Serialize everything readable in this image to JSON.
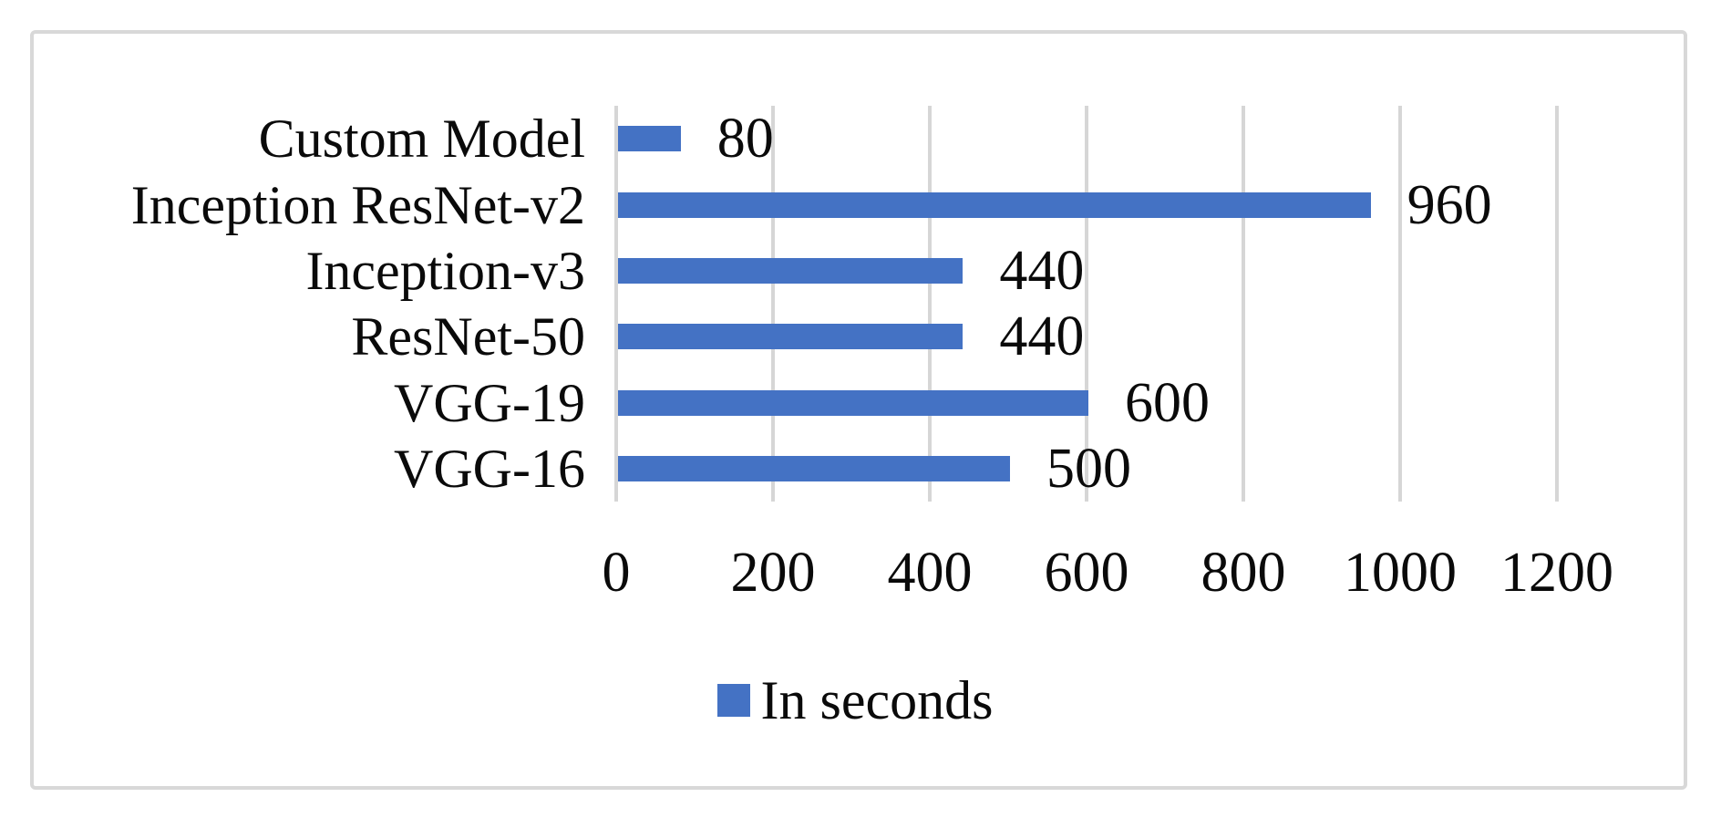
{
  "chart_data": {
    "type": "bar",
    "orientation": "horizontal",
    "title": "",
    "categories": [
      "Custom Model",
      "Inception ResNet-v2",
      "Inception-v3",
      "ResNet-50",
      "VGG-19",
      "VGG-16"
    ],
    "series": [
      {
        "name": "In seconds",
        "values": [
          80,
          960,
          440,
          440,
          600,
          500
        ]
      }
    ],
    "data_labels_visible": true,
    "xlabel": "",
    "ylabel": "",
    "xlim": [
      0,
      1200
    ],
    "xticks": [
      0,
      200,
      400,
      600,
      800,
      1000,
      1200
    ],
    "grid": "vertical",
    "legend": {
      "label": "In seconds",
      "position": "bottom-center"
    },
    "colors": {
      "bar": "#4472c4",
      "gridline": "#d6d6d6",
      "frame_border": "#d8d8d8",
      "text": "#0a0a0a",
      "background": "#ffffff"
    }
  }
}
